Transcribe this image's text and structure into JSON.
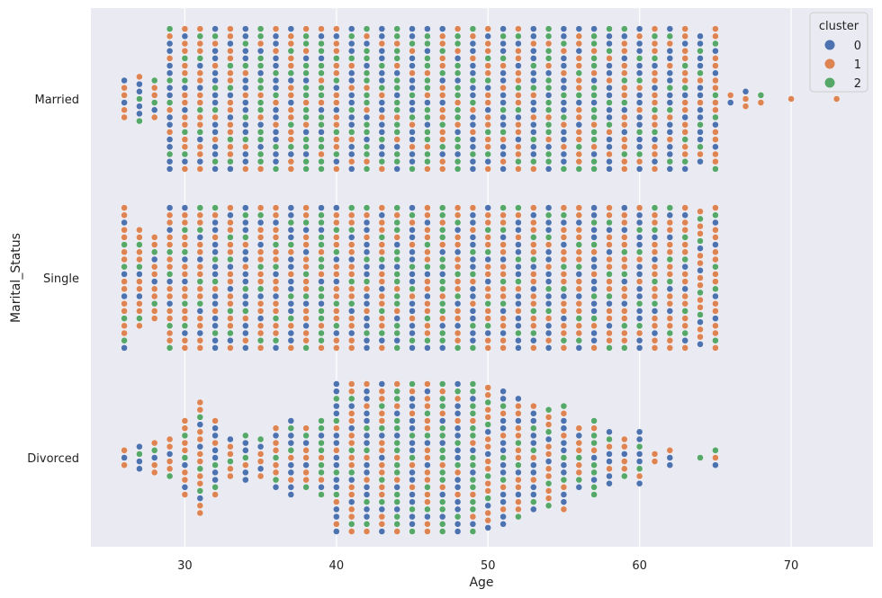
{
  "chart_data": {
    "type": "scatter",
    "subtype": "swarm",
    "title": "",
    "xlabel": "Age",
    "ylabel": "Marital_Status",
    "xlim": [
      23.8,
      75.4
    ],
    "xticks": [
      30,
      40,
      50,
      60,
      70
    ],
    "xtick_labels": [
      "30",
      "40",
      "50",
      "60",
      "70"
    ],
    "categories": [
      "Married",
      "Single",
      "Divorced"
    ],
    "grid": true,
    "background": "#eaeaf2",
    "legend": {
      "title": "cluster",
      "placement": "top-right",
      "entries": [
        {
          "label": "0",
          "color": "#4c72b0"
        },
        {
          "label": "1",
          "color": "#dd8452"
        },
        {
          "label": "2",
          "color": "#55a868"
        }
      ]
    },
    "series": [
      {
        "category": "Married",
        "points": [
          [
            26,
            6,
            "1"
          ],
          [
            27,
            7,
            "0"
          ],
          [
            28,
            6,
            "1"
          ],
          [
            29,
            20,
            "0"
          ],
          [
            30,
            20,
            "1"
          ],
          [
            31,
            20,
            "1"
          ],
          [
            32,
            20,
            "0"
          ],
          [
            33,
            20,
            "1"
          ],
          [
            34,
            20,
            "0"
          ],
          [
            35,
            20,
            "2"
          ],
          [
            36,
            20,
            "0"
          ],
          [
            37,
            20,
            "1"
          ],
          [
            38,
            20,
            "2"
          ],
          [
            39,
            20,
            "2"
          ],
          [
            40,
            20,
            "1"
          ],
          [
            41,
            20,
            "0"
          ],
          [
            42,
            20,
            "2"
          ],
          [
            43,
            20,
            "0"
          ],
          [
            44,
            20,
            "2"
          ],
          [
            45,
            20,
            "0"
          ],
          [
            46,
            20,
            "2"
          ],
          [
            47,
            20,
            "1"
          ],
          [
            48,
            20,
            "2"
          ],
          [
            49,
            20,
            "0"
          ],
          [
            50,
            20,
            "1"
          ],
          [
            51,
            20,
            "0"
          ],
          [
            52,
            20,
            "1"
          ],
          [
            53,
            20,
            "0"
          ],
          [
            54,
            20,
            "2"
          ],
          [
            55,
            20,
            "0"
          ],
          [
            56,
            20,
            "1"
          ],
          [
            57,
            20,
            "2"
          ],
          [
            58,
            20,
            "0"
          ],
          [
            59,
            20,
            "1"
          ],
          [
            60,
            20,
            "0"
          ],
          [
            61,
            20,
            "1"
          ],
          [
            62,
            20,
            "0"
          ],
          [
            63,
            20,
            "1"
          ],
          [
            64,
            18,
            "0"
          ],
          [
            65,
            20,
            "1"
          ],
          [
            66,
            2,
            "0"
          ],
          [
            67,
            3,
            "1"
          ],
          [
            68,
            2,
            "1"
          ],
          [
            70,
            1,
            "1"
          ],
          [
            73,
            1,
            "1"
          ]
        ]
      },
      {
        "category": "Single",
        "points": [
          [
            26,
            20,
            "1"
          ],
          [
            27,
            14,
            "1"
          ],
          [
            28,
            12,
            "1"
          ],
          [
            29,
            20,
            "1"
          ],
          [
            30,
            20,
            "1"
          ],
          [
            31,
            20,
            "1"
          ],
          [
            32,
            20,
            "0"
          ],
          [
            33,
            20,
            "1"
          ],
          [
            34,
            20,
            "0"
          ],
          [
            35,
            20,
            "1"
          ],
          [
            36,
            20,
            "1"
          ],
          [
            37,
            20,
            "0"
          ],
          [
            38,
            20,
            "1"
          ],
          [
            39,
            20,
            "2"
          ],
          [
            40,
            20,
            "1"
          ],
          [
            41,
            20,
            "1"
          ],
          [
            42,
            20,
            "0"
          ],
          [
            43,
            20,
            "1"
          ],
          [
            44,
            20,
            "2"
          ],
          [
            45,
            20,
            "0"
          ],
          [
            46,
            20,
            "1"
          ],
          [
            47,
            20,
            "2"
          ],
          [
            48,
            20,
            "1"
          ],
          [
            49,
            20,
            "0"
          ],
          [
            50,
            20,
            "1"
          ],
          [
            51,
            20,
            "1"
          ],
          [
            52,
            20,
            "0"
          ],
          [
            53,
            20,
            "1"
          ],
          [
            54,
            20,
            "0"
          ],
          [
            55,
            20,
            "1"
          ],
          [
            56,
            20,
            "1"
          ],
          [
            57,
            20,
            "0"
          ],
          [
            58,
            20,
            "1"
          ],
          [
            59,
            20,
            "1"
          ],
          [
            60,
            20,
            "0"
          ],
          [
            61,
            20,
            "1"
          ],
          [
            62,
            20,
            "1"
          ],
          [
            63,
            20,
            "1"
          ],
          [
            64,
            19,
            "1"
          ],
          [
            65,
            20,
            "1"
          ]
        ]
      },
      {
        "category": "Divorced",
        "points": [
          [
            26,
            3,
            "1"
          ],
          [
            27,
            4,
            "0"
          ],
          [
            28,
            5,
            "1"
          ],
          [
            29,
            6,
            "1"
          ],
          [
            30,
            11,
            "1"
          ],
          [
            31,
            16,
            "1"
          ],
          [
            32,
            11,
            "0"
          ],
          [
            33,
            6,
            "1"
          ],
          [
            34,
            7,
            "0"
          ],
          [
            35,
            6,
            "1"
          ],
          [
            36,
            9,
            "1"
          ],
          [
            37,
            11,
            "0"
          ],
          [
            38,
            9,
            "1"
          ],
          [
            39,
            11,
            "2"
          ],
          [
            40,
            21,
            "0"
          ],
          [
            41,
            21,
            "1"
          ],
          [
            42,
            21,
            "0"
          ],
          [
            43,
            21,
            "1"
          ],
          [
            44,
            21,
            "2"
          ],
          [
            45,
            21,
            "0"
          ],
          [
            46,
            21,
            "1"
          ],
          [
            47,
            21,
            "2"
          ],
          [
            48,
            21,
            "0"
          ],
          [
            49,
            21,
            "2"
          ],
          [
            50,
            20,
            "1"
          ],
          [
            51,
            19,
            "0"
          ],
          [
            52,
            17,
            "1"
          ],
          [
            53,
            15,
            "0"
          ],
          [
            54,
            14,
            "1"
          ],
          [
            55,
            15,
            "0"
          ],
          [
            56,
            9,
            "1"
          ],
          [
            57,
            11,
            "2"
          ],
          [
            58,
            8,
            "0"
          ],
          [
            59,
            6,
            "1"
          ],
          [
            60,
            8,
            "0"
          ],
          [
            61,
            2,
            "1"
          ],
          [
            62,
            3,
            "0"
          ],
          [
            64,
            1,
            "1"
          ],
          [
            65,
            3,
            "0"
          ]
        ]
      }
    ]
  }
}
